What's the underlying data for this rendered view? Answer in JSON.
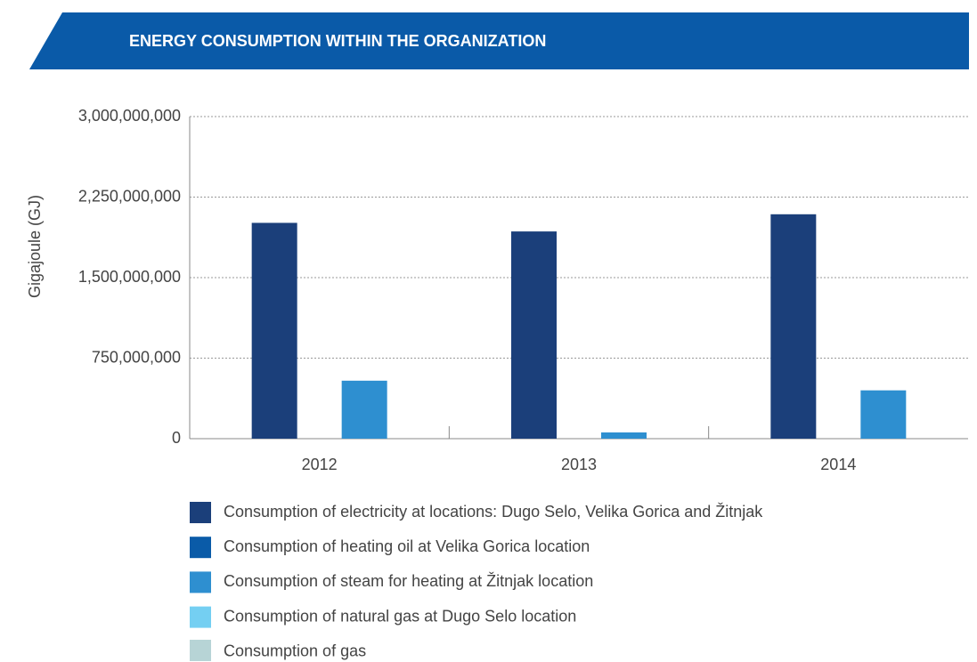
{
  "chart_data": {
    "type": "bar",
    "title": "ENERGY CONSUMPTION WITHIN THE ORGANIZATION",
    "y_label": "Gigajoule (GJ)",
    "categories": [
      "2012",
      "2013",
      "2014"
    ],
    "series": [
      {
        "name": "Consumption of electricity at locations: Dugo Selo, Velika Gorica and Žitnjak",
        "color": "#1b3f7a",
        "values": [
          2010000000,
          1930000000,
          2090000000
        ]
      },
      {
        "name": "Consumption of heating oil at Velika Gorica location",
        "color": "#0a5ba8",
        "values": [
          0,
          0,
          0
        ]
      },
      {
        "name": "Consumption of steam for heating at Žitnjak location",
        "color": "#2e8fd0",
        "values": [
          540000000,
          58000000,
          450000000
        ]
      },
      {
        "name": "Consumption of natural gas at Dugo Selo location",
        "color": "#74cff2",
        "values": [
          null,
          null,
          null
        ]
      },
      {
        "name": "Consumption of gas",
        "color": "#b7d4d6",
        "values": [
          null,
          null,
          null
        ]
      }
    ],
    "ylim": [
      0,
      3000000000
    ],
    "yticks": [
      0,
      {
        "value": 750000000,
        "label": "750,000,000"
      },
      {
        "value": 1500000000,
        "label": "1,500,000,000"
      },
      {
        "value": 2250000000,
        "label": "2,250,000,000"
      },
      {
        "value": 3000000000,
        "label": "3,000,000,000"
      }
    ],
    "grid": true,
    "legend": "bottom"
  }
}
